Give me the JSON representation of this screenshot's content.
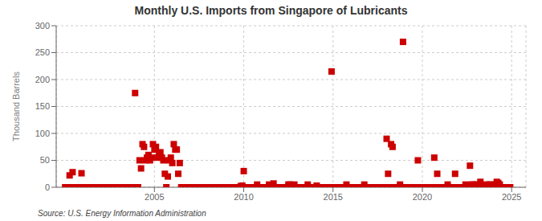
{
  "chart_data": {
    "type": "scatter",
    "title": "Monthly U.S. Imports from Singapore of Lubricants",
    "ylabel": "Thousand Barrels",
    "source": "Source: U.S. Energy Information Administration",
    "color": "#cc0000",
    "marker": "square",
    "grid": true,
    "xlim": [
      1999.5,
      2025.8
    ],
    "xticks": [
      2005,
      2010,
      2015,
      2020,
      2025
    ],
    "ylim": [
      0,
      300
    ],
    "yticks": [
      0,
      50,
      100,
      150,
      200,
      250,
      300
    ],
    "x": [
      2000.0,
      2000.083,
      2000.167,
      2000.25,
      2000.333,
      2000.417,
      2000.5,
      2000.583,
      2000.667,
      2000.75,
      2000.833,
      2000.917,
      2001.0,
      2001.083,
      2001.167,
      2001.25,
      2001.333,
      2001.417,
      2001.5,
      2001.583,
      2001.667,
      2001.75,
      2001.833,
      2001.917,
      2002.0,
      2002.083,
      2002.167,
      2002.25,
      2002.333,
      2002.417,
      2002.5,
      2002.583,
      2002.667,
      2002.75,
      2002.833,
      2002.917,
      2003.0,
      2003.083,
      2003.167,
      2003.25,
      2003.333,
      2003.417,
      2003.5,
      2003.583,
      2003.667,
      2003.75,
      2003.833,
      2003.917,
      2004.0,
      2004.083,
      2004.167,
      2004.25,
      2004.333,
      2004.417,
      2004.5,
      2004.583,
      2004.667,
      2004.75,
      2004.833,
      2004.917,
      2005.0,
      2005.083,
      2005.167,
      2005.25,
      2005.333,
      2005.417,
      2005.5,
      2005.583,
      2005.667,
      2005.75,
      2005.833,
      2005.917,
      2006.0,
      2006.083,
      2006.167,
      2006.25,
      2006.333,
      2006.417,
      2006.5,
      2006.583,
      2006.667,
      2006.75,
      2006.833,
      2006.917,
      2007.0,
      2007.083,
      2007.167,
      2007.25,
      2007.333,
      2007.417,
      2007.5,
      2007.583,
      2007.667,
      2007.75,
      2007.833,
      2007.917,
      2008.0,
      2008.083,
      2008.167,
      2008.25,
      2008.333,
      2008.417,
      2008.5,
      2008.583,
      2008.667,
      2008.75,
      2008.833,
      2008.917,
      2009.0,
      2009.083,
      2009.167,
      2009.25,
      2009.333,
      2009.417,
      2009.5,
      2009.583,
      2009.667,
      2009.75,
      2009.833,
      2009.917,
      2010.0,
      2010.083,
      2010.167,
      2010.25,
      2010.333,
      2010.417,
      2010.5,
      2010.583,
      2010.667,
      2010.75,
      2010.833,
      2010.917,
      2011.0,
      2011.083,
      2011.167,
      2011.25,
      2011.333,
      2011.417,
      2011.5,
      2011.583,
      2011.667,
      2011.75,
      2011.833,
      2011.917,
      2012.0,
      2012.083,
      2012.167,
      2012.25,
      2012.333,
      2012.417,
      2012.5,
      2012.583,
      2012.667,
      2012.75,
      2012.833,
      2012.917,
      2013.0,
      2013.083,
      2013.167,
      2013.25,
      2013.333,
      2013.417,
      2013.5,
      2013.583,
      2013.667,
      2013.75,
      2013.833,
      2013.917,
      2014.0,
      2014.083,
      2014.167,
      2014.25,
      2014.333,
      2014.417,
      2014.5,
      2014.583,
      2014.667,
      2014.75,
      2014.833,
      2014.917,
      2015.0,
      2015.083,
      2015.167,
      2015.25,
      2015.333,
      2015.417,
      2015.5,
      2015.583,
      2015.667,
      2015.75,
      2015.833,
      2015.917,
      2016.0,
      2016.083,
      2016.167,
      2016.25,
      2016.333,
      2016.417,
      2016.5,
      2016.583,
      2016.667,
      2016.75,
      2016.833,
      2016.917,
      2017.0,
      2017.083,
      2017.167,
      2017.25,
      2017.333,
      2017.417,
      2017.5,
      2017.583,
      2017.667,
      2017.75,
      2017.833,
      2017.917,
      2018.0,
      2018.083,
      2018.167,
      2018.25,
      2018.333,
      2018.417,
      2018.5,
      2018.583,
      2018.667,
      2018.75,
      2018.833,
      2018.917,
      2019.0,
      2019.083,
      2019.167,
      2019.25,
      2019.333,
      2019.417,
      2019.5,
      2019.583,
      2019.667,
      2019.75,
      2019.833,
      2019.917,
      2020.0,
      2020.083,
      2020.167,
      2020.25,
      2020.333,
      2020.417,
      2020.5,
      2020.583,
      2020.667,
      2020.75,
      2020.833,
      2020.917,
      2021.0,
      2021.083,
      2021.167,
      2021.25,
      2021.333,
      2021.417,
      2021.5,
      2021.583,
      2021.667,
      2021.75,
      2021.833,
      2021.917,
      2022.0,
      2022.083,
      2022.167,
      2022.25,
      2022.333,
      2022.417,
      2022.5,
      2022.583,
      2022.667,
      2022.75,
      2022.833,
      2022.917,
      2023.0,
      2023.083,
      2023.167,
      2023.25,
      2023.333,
      2023.417,
      2023.5,
      2023.583,
      2023.667,
      2023.75,
      2023.833,
      2023.917,
      2024.0,
      2024.083,
      2024.167,
      2024.25,
      2024.333,
      2024.417,
      2024.5,
      2024.583,
      2024.667,
      2024.75,
      2024.833,
      2024.917
    ],
    "values": [
      0,
      0,
      0,
      22,
      0,
      28,
      0,
      0,
      0,
      0,
      0,
      26,
      0,
      0,
      0,
      0,
      0,
      0,
      0,
      0,
      0,
      0,
      0,
      0,
      0,
      0,
      0,
      0,
      0,
      0,
      0,
      0,
      0,
      0,
      0,
      0,
      0,
      0,
      0,
      0,
      0,
      0,
      0,
      0,
      0,
      0,
      0,
      175,
      0,
      0,
      50,
      35,
      80,
      75,
      50,
      55,
      60,
      50,
      55,
      80,
      70,
      75,
      55,
      60,
      65,
      55,
      50,
      25,
      0,
      20,
      50,
      55,
      45,
      80,
      70,
      70,
      25,
      45,
      0,
      0,
      0,
      0,
      0,
      0,
      0,
      0,
      0,
      0,
      0,
      0,
      0,
      0,
      0,
      0,
      0,
      0,
      0,
      0,
      0,
      0,
      0,
      0,
      0,
      0,
      0,
      0,
      0,
      0,
      0,
      0,
      0,
      0,
      0,
      0,
      0,
      0,
      0,
      0,
      2,
      3,
      30,
      0,
      0,
      0,
      0,
      0,
      0,
      0,
      0,
      5,
      0,
      0,
      0,
      0,
      0,
      0,
      0,
      5,
      0,
      0,
      7,
      0,
      0,
      0,
      0,
      0,
      0,
      0,
      0,
      0,
      5,
      5,
      0,
      0,
      5,
      0,
      0,
      0,
      0,
      0,
      0,
      0,
      0,
      5,
      0,
      0,
      0,
      0,
      0,
      3,
      0,
      0,
      0,
      0,
      0,
      0,
      0,
      0,
      0,
      215,
      0,
      0,
      0,
      0,
      0,
      0,
      0,
      0,
      0,
      5,
      0,
      0,
      0,
      0,
      0,
      0,
      0,
      0,
      0,
      0,
      0,
      5,
      0,
      0,
      0,
      0,
      0,
      0,
      0,
      0,
      0,
      0,
      0,
      0,
      0,
      0,
      90,
      25,
      0,
      80,
      75,
      0,
      0,
      0,
      0,
      5,
      0,
      270,
      0,
      0,
      0,
      0,
      0,
      0,
      0,
      0,
      0,
      50,
      0,
      0,
      0,
      0,
      0,
      0,
      0,
      0,
      0,
      0,
      55,
      0,
      25,
      0,
      0,
      0,
      0,
      0,
      0,
      5,
      0,
      0,
      0,
      0,
      25,
      0,
      0,
      0,
      0,
      0,
      0,
      5,
      0,
      0,
      40,
      5,
      5,
      0,
      5,
      5,
      0,
      10,
      0,
      0,
      0,
      5,
      0,
      5,
      5,
      0,
      0,
      5,
      10,
      8,
      5,
      0,
      0,
      0,
      0,
      0,
      0,
      0
    ]
  }
}
